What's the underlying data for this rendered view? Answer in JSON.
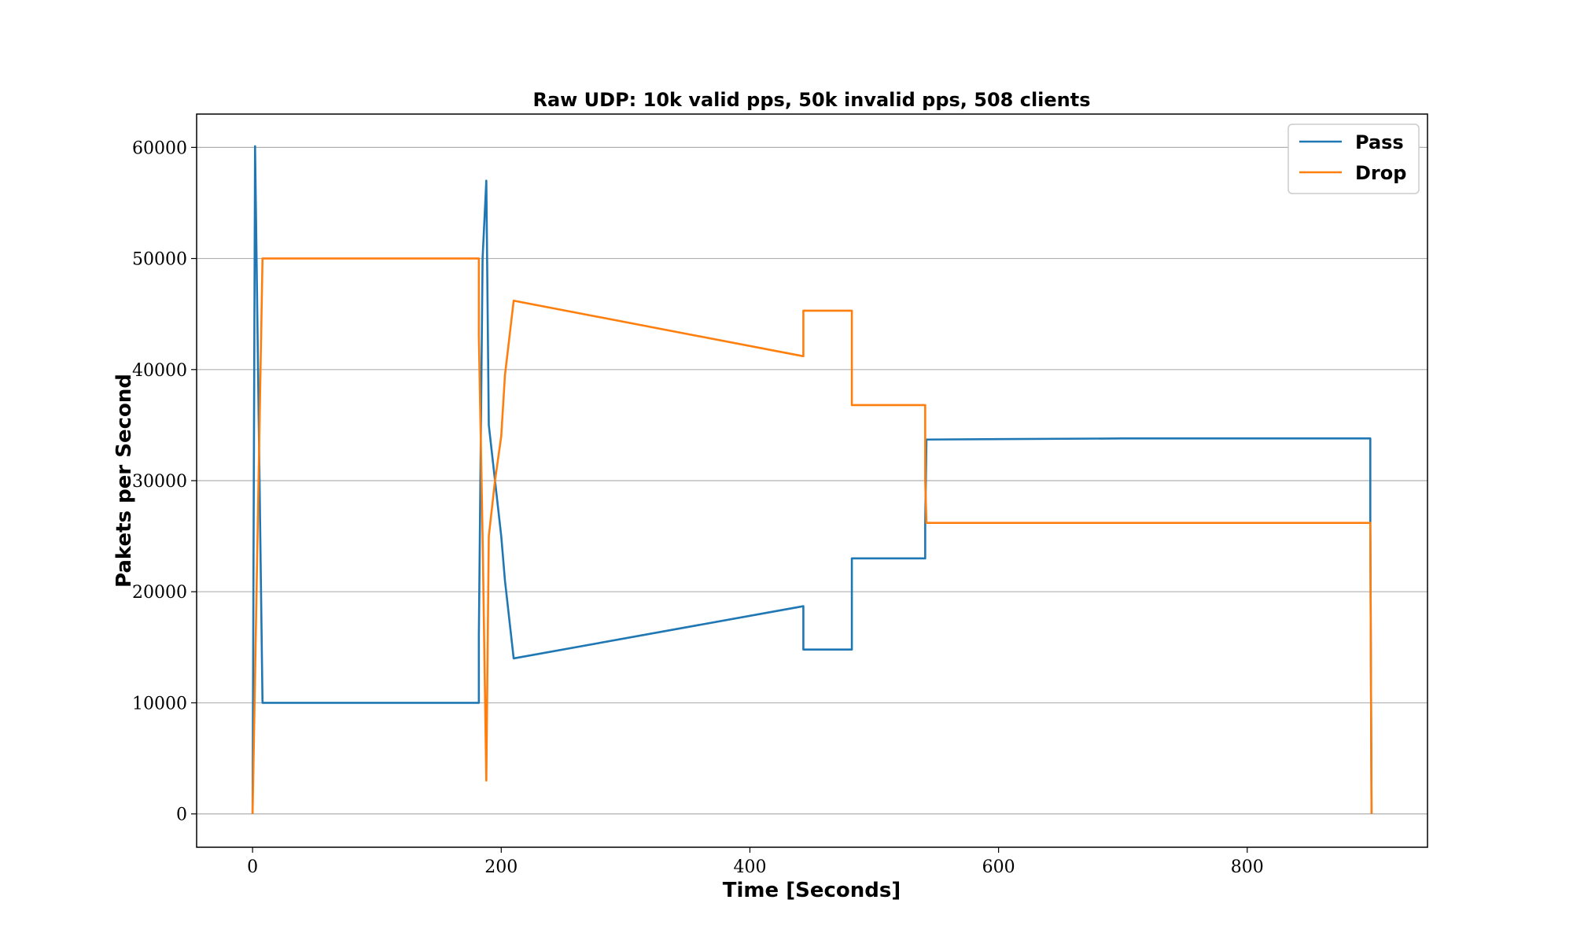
{
  "chart_data": {
    "type": "line",
    "title": "Raw UDP: 10k valid pps, 50k invalid pps, 508 clients",
    "xlabel": "Time [Seconds]",
    "ylabel": "Pakets per Second",
    "xlim": [
      -45,
      945
    ],
    "ylim": [
      -3000,
      63000
    ],
    "xticks": [
      0,
      200,
      400,
      600,
      800
    ],
    "yticks": [
      0,
      10000,
      20000,
      30000,
      40000,
      50000,
      60000
    ],
    "grid": "y-major",
    "legend": "top-right",
    "series": [
      {
        "name": "Pass",
        "color": "#1f77b4",
        "points": [
          [
            0,
            0
          ],
          [
            2,
            60100
          ],
          [
            8,
            10000
          ],
          [
            100,
            10000
          ],
          [
            182,
            10000
          ],
          [
            182,
            16000
          ],
          [
            185,
            50000
          ],
          [
            188,
            57000
          ],
          [
            190,
            35000
          ],
          [
            195,
            30000
          ],
          [
            200,
            25000
          ],
          [
            203,
            21000
          ],
          [
            210,
            14000
          ],
          [
            443,
            18700
          ],
          [
            443,
            14800
          ],
          [
            482,
            14800
          ],
          [
            482,
            23000
          ],
          [
            541,
            23000
          ],
          [
            541,
            26000
          ],
          [
            542,
            33700
          ],
          [
            700,
            33800
          ],
          [
            899,
            33800
          ],
          [
            899,
            26500
          ],
          [
            900,
            0
          ]
        ]
      },
      {
        "name": "Drop",
        "color": "#ff7f0e",
        "points": [
          [
            0,
            0
          ],
          [
            8,
            50000
          ],
          [
            100,
            50000
          ],
          [
            182,
            50000
          ],
          [
            182,
            43000
          ],
          [
            185,
            25000
          ],
          [
            188,
            3000
          ],
          [
            190,
            25000
          ],
          [
            195,
            30000
          ],
          [
            200,
            34000
          ],
          [
            203,
            39500
          ],
          [
            210,
            46200
          ],
          [
            443,
            41200
          ],
          [
            443,
            45300
          ],
          [
            482,
            45300
          ],
          [
            482,
            36800
          ],
          [
            541,
            36800
          ],
          [
            541,
            30000
          ],
          [
            542,
            26200
          ],
          [
            700,
            26200
          ],
          [
            899,
            26200
          ],
          [
            900,
            0
          ]
        ]
      }
    ]
  }
}
